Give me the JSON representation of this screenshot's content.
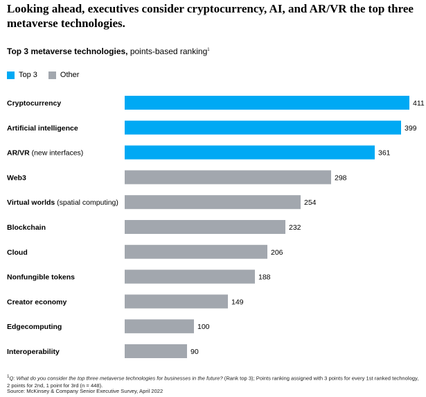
{
  "headline": "Looking ahead, executives consider cryptocurrency, AI, and AR/VR the top three metaverse technologies.",
  "subtitle_main": "Top 3 metaverse technologies,",
  "subtitle_rest": " points-based ranking",
  "subtitle_note_marker": "1",
  "legend": [
    {
      "label": "Top 3",
      "color": "#00a9f4"
    },
    {
      "label": "Other",
      "color": "#a2a7ae"
    }
  ],
  "chart_data": {
    "type": "bar",
    "orientation": "horizontal",
    "categories": [
      {
        "name": "Cryptocurrency",
        "note": ""
      },
      {
        "name": "Artificial intelligence",
        "note": ""
      },
      {
        "name": "AR/VR",
        "note": "(new interfaces)"
      },
      {
        "name": "Web3",
        "note": ""
      },
      {
        "name": "Virtual worlds",
        "note": "(spatial computing)"
      },
      {
        "name": "Blockchain",
        "note": ""
      },
      {
        "name": "Cloud",
        "note": ""
      },
      {
        "name": "Nonfungible tokens",
        "note": ""
      },
      {
        "name": "Creator economy",
        "note": ""
      },
      {
        "name": "Edgecomputing",
        "note": ""
      },
      {
        "name": "Interoperability",
        "note": ""
      }
    ],
    "values": [
      411,
      399,
      361,
      298,
      254,
      232,
      206,
      188,
      149,
      100,
      90
    ],
    "groups": [
      "Top 3",
      "Top 3",
      "Top 3",
      "Other",
      "Other",
      "Other",
      "Other",
      "Other",
      "Other",
      "Other",
      "Other"
    ],
    "xlim": [
      0,
      411
    ],
    "grid": false,
    "legend_position": "top-left"
  },
  "footnote_marker": "1",
  "footnote_question": "Q: What do you consider the top three metaverse technologies for businesses in the future?",
  "footnote_rest": " (Rank top 3); Points ranking assigned with 3 points for every 1st ranked technology, 2 points for 2nd, 1 point for 3rd (n = 448).",
  "source": "Source: McKinsey & Company Senior Executive Survey, April 2022"
}
